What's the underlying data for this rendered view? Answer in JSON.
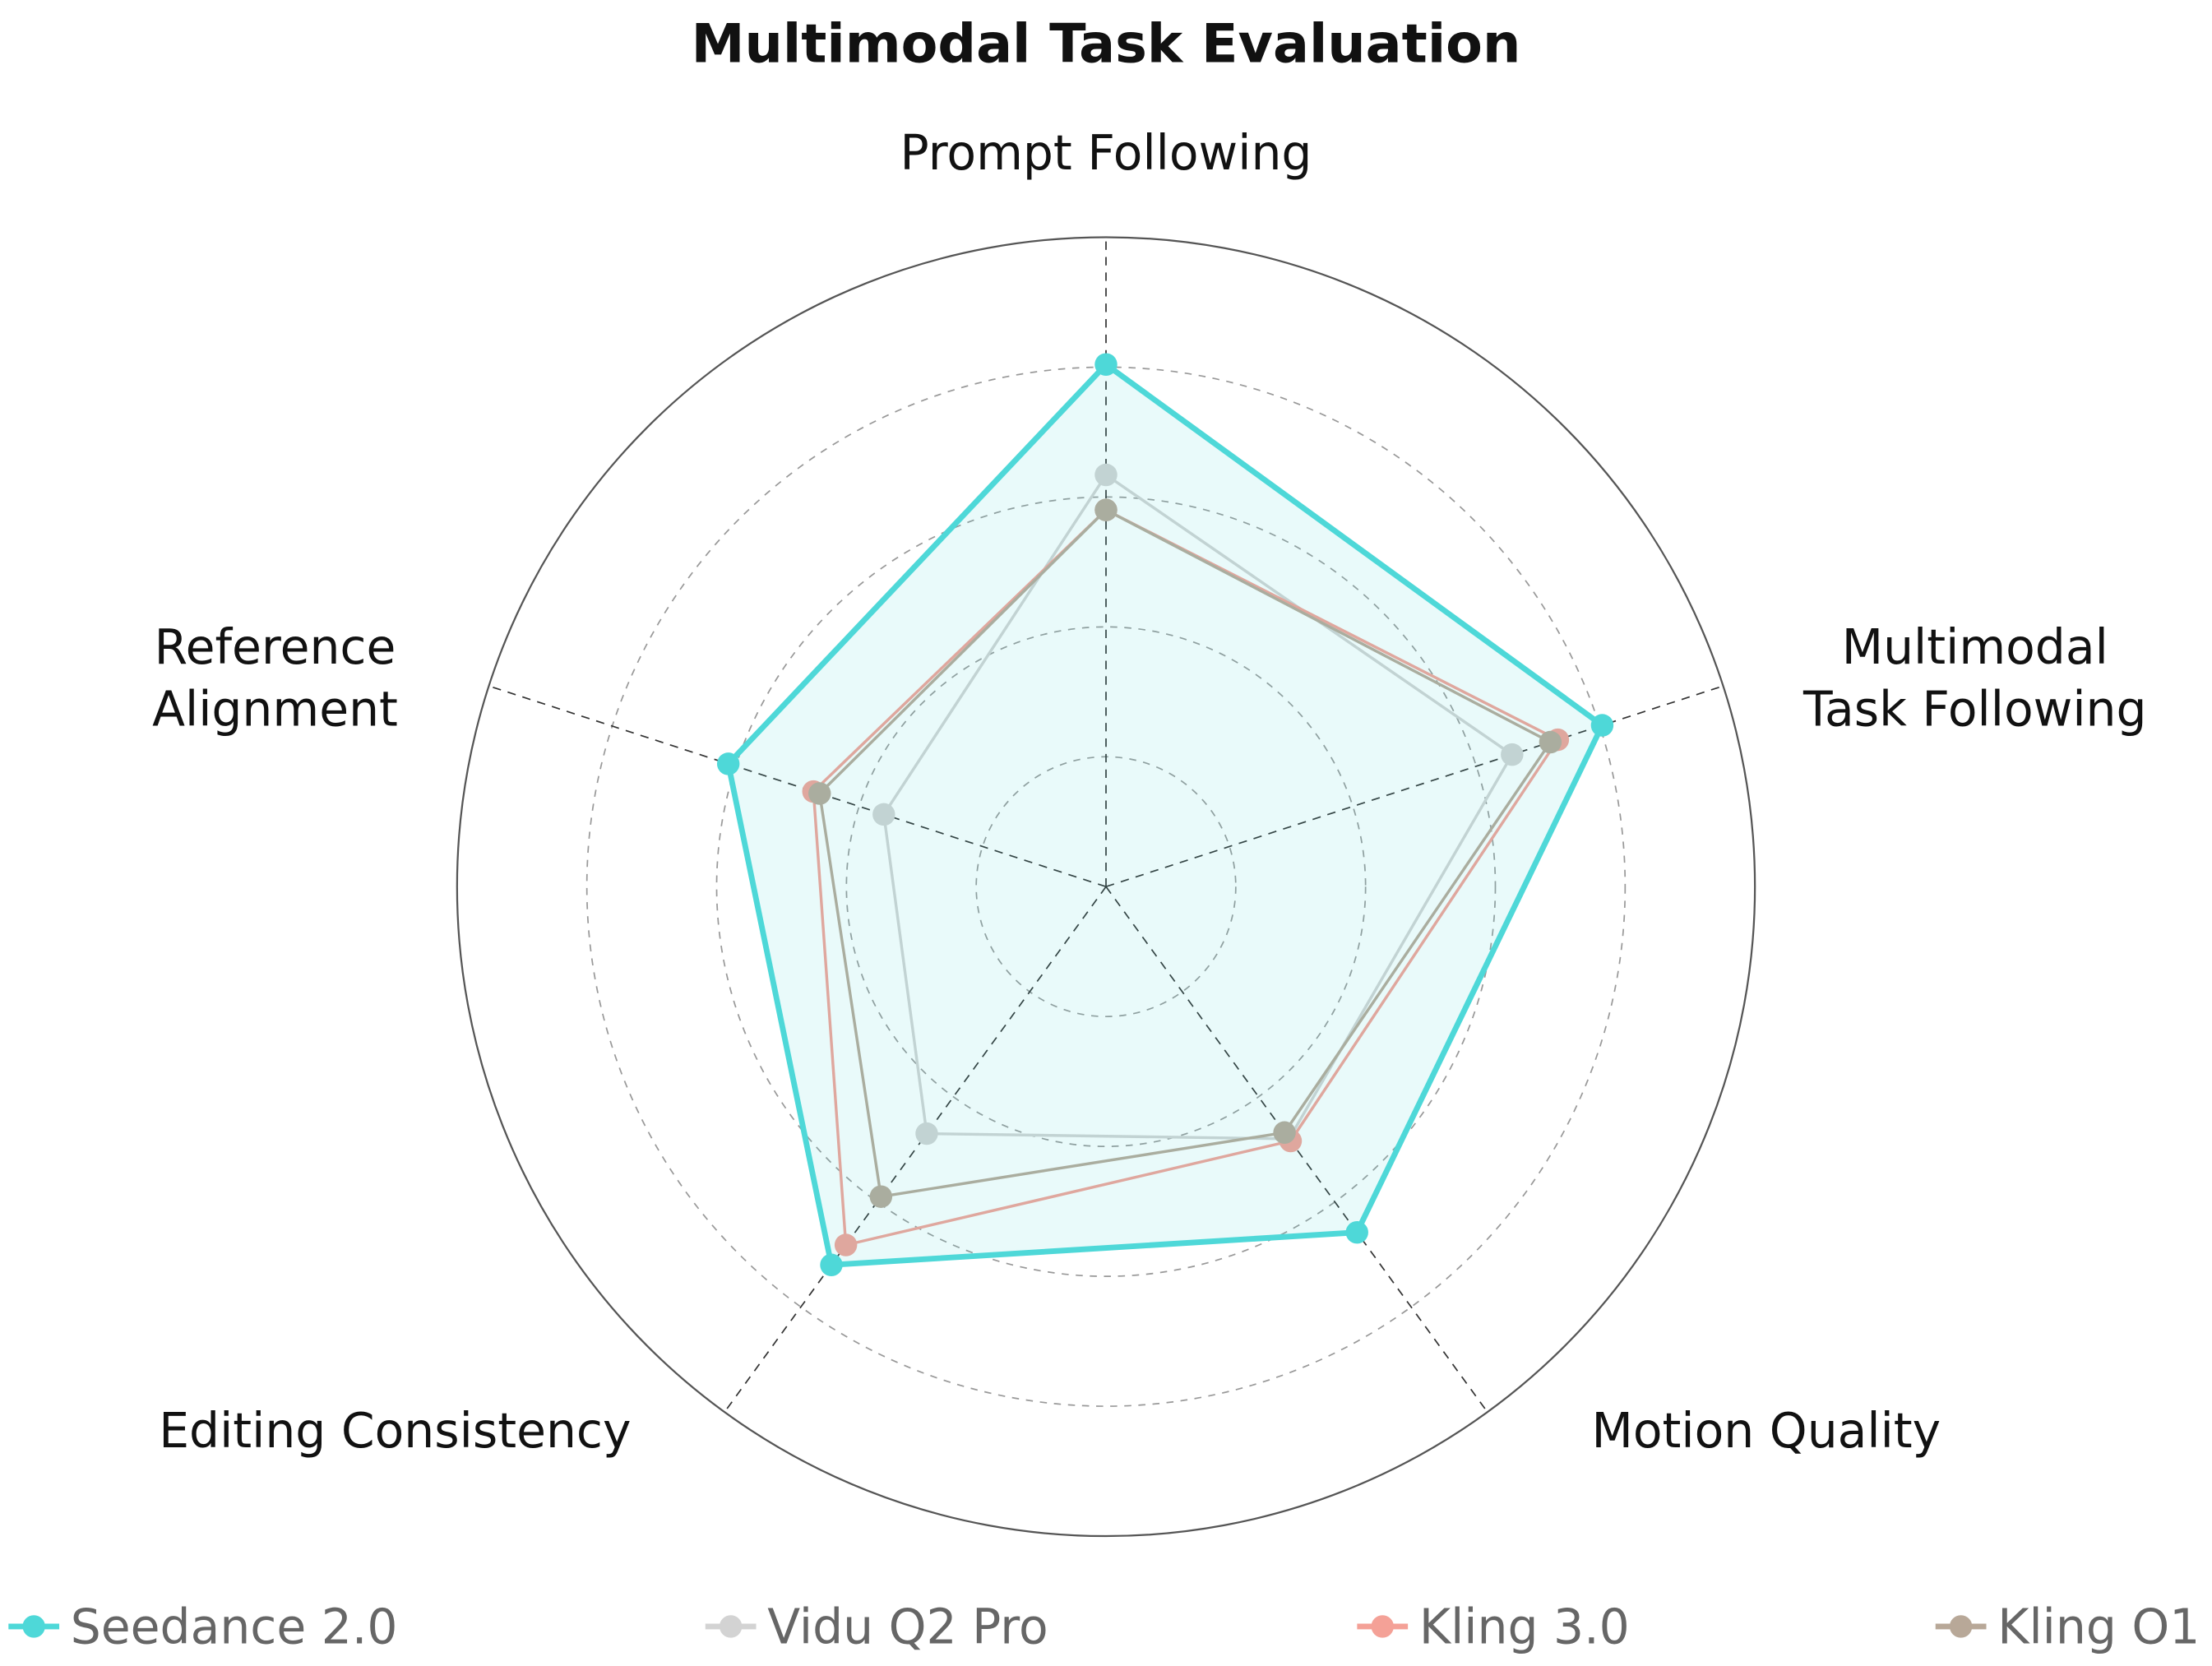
{
  "chart_data": {
    "type": "radar",
    "title": "Multimodal Task Evaluation",
    "axes": [
      [
        "Prompt Following"
      ],
      [
        "Multimodal",
        "Task Following"
      ],
      [
        "Motion Quality"
      ],
      [
        "Editing Consistency"
      ],
      [
        "Reference",
        "Alignment"
      ]
    ],
    "rlim": [
      0,
      5
    ],
    "grid": true,
    "legend_position": "bottom",
    "series": [
      {
        "name": "Seedance 2.0",
        "color": "#4ED8D8",
        "values": [
          4.02,
          4.02,
          3.29,
          3.6,
          3.06
        ],
        "filled": true
      },
      {
        "name": "Vidu Q2 Pro",
        "color": "#D3D3D3",
        "values": [
          3.17,
          3.29,
          2.4,
          2.35,
          1.8
        ]
      },
      {
        "name": "Kling 3.0",
        "color": "#F4A197",
        "values": [
          2.9,
          3.66,
          2.42,
          3.41,
          2.37
        ]
      },
      {
        "name": "Kling O1",
        "color": "#B8A898",
        "values": [
          2.9,
          3.6,
          2.34,
          2.95,
          2.32
        ]
      }
    ]
  }
}
